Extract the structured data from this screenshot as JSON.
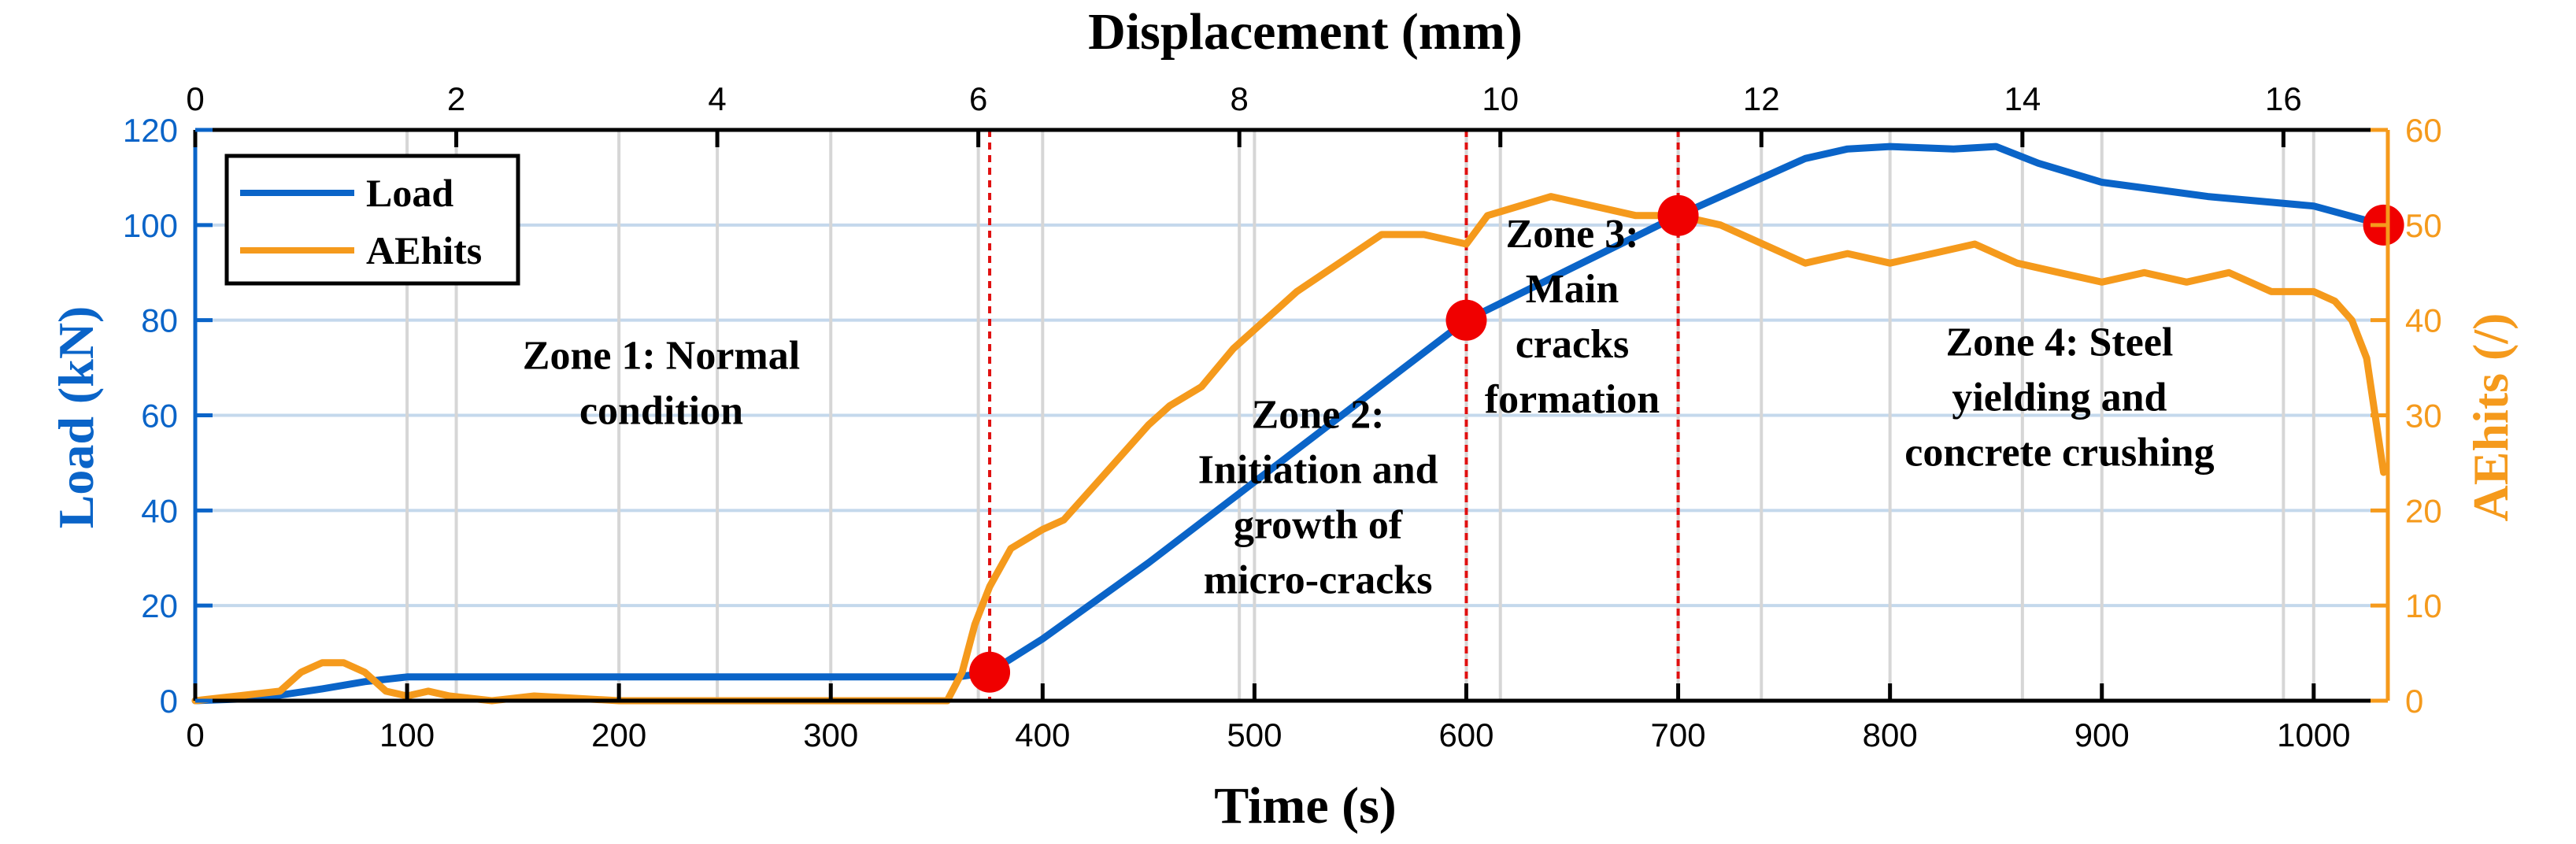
{
  "chart_data": {
    "type": "line",
    "title": "",
    "xlabel": "Time (s)",
    "x2label": "Displacement (mm)",
    "ylabel": "Load (kN)",
    "y2label": "AEhits (/)",
    "xlim": [
      0,
      1035
    ],
    "ylim": [
      0,
      120
    ],
    "y2lim": [
      0,
      60
    ],
    "x2lim": [
      0,
      16.8
    ],
    "grid": true,
    "legend_position": "top-left",
    "x_ticks": [
      "0",
      "100",
      "200",
      "300",
      "400",
      "500",
      "600",
      "700",
      "800",
      "900",
      "1000"
    ],
    "x2_ticks": [
      "0",
      "2",
      "4",
      "6",
      "8",
      "10",
      "12",
      "14",
      "16"
    ],
    "y_ticks": [
      "0",
      "20",
      "40",
      "60",
      "80",
      "100",
      "120"
    ],
    "y2_ticks": [
      "0",
      "10",
      "20",
      "30",
      "40",
      "50",
      "60"
    ],
    "colors": {
      "load": "#0a64c8",
      "aehits": "#f59a1c",
      "marker": "#f00000",
      "divider": "#e01010",
      "grid": "#c4d8ec"
    },
    "series": [
      {
        "name": "Load",
        "axis": "left",
        "x": [
          0,
          30,
          60,
          80,
          100,
          150,
          200,
          300,
          360,
          375,
          400,
          450,
          500,
          550,
          600,
          650,
          700,
          730,
          760,
          780,
          800,
          830,
          850,
          870,
          900,
          950,
          1000,
          1033
        ],
        "values": [
          0,
          0.5,
          2.5,
          4,
          5,
          5,
          5,
          5,
          5,
          6,
          13,
          29,
          46,
          63,
          80,
          91,
          102,
          108,
          114,
          116,
          116.5,
          116,
          116.5,
          113,
          109,
          106,
          104,
          100
        ]
      },
      {
        "name": "AEhits",
        "axis": "right",
        "x": [
          0,
          20,
          40,
          50,
          60,
          70,
          80,
          90,
          100,
          110,
          120,
          140,
          160,
          200,
          300,
          355,
          362,
          368,
          375,
          385,
          400,
          410,
          430,
          450,
          460,
          475,
          490,
          510,
          520,
          540,
          560,
          580,
          600,
          610,
          640,
          660,
          680,
          700,
          720,
          740,
          760,
          780,
          800,
          820,
          840,
          860,
          880,
          900,
          920,
          940,
          960,
          980,
          1000,
          1010,
          1018,
          1025,
          1033
        ],
        "values": [
          0,
          0.5,
          1,
          3,
          4,
          4,
          3,
          1,
          0.5,
          1,
          0.5,
          0,
          0.5,
          0,
          0,
          0,
          3,
          8,
          12,
          16,
          18,
          19,
          24,
          29,
          31,
          33,
          37,
          41,
          43,
          46,
          49,
          49,
          48,
          51,
          53,
          52,
          51,
          51,
          50,
          48,
          46,
          47,
          46,
          47,
          48,
          46,
          45,
          44,
          45,
          44,
          45,
          43,
          43,
          42,
          40,
          36,
          24
        ]
      }
    ],
    "markers": [
      {
        "x": 375,
        "load": 6
      },
      {
        "x": 600,
        "load": 80
      },
      {
        "x": 700,
        "load": 102
      },
      {
        "x": 1033,
        "load": 100
      }
    ],
    "dividers": [
      375,
      600,
      700
    ],
    "legend": {
      "load_label": "Load",
      "aehits_label": "AEhits"
    },
    "annotations": [
      {
        "lines": [
          "Zone 1: Normal",
          "condition"
        ],
        "x": 220,
        "y": 64
      },
      {
        "lines": [
          "Zone 2:",
          "Initiation and",
          "growth of",
          "micro-cracks"
        ],
        "x": 530,
        "y": 40
      },
      {
        "lines": [
          "Zone 3:",
          "Main",
          "cracks",
          "formation"
        ],
        "x": 650,
        "y": 78
      },
      {
        "lines": [
          "Zone 4: Steel",
          "yielding and",
          "concrete crushing"
        ],
        "x": 880,
        "y": 61
      }
    ]
  }
}
